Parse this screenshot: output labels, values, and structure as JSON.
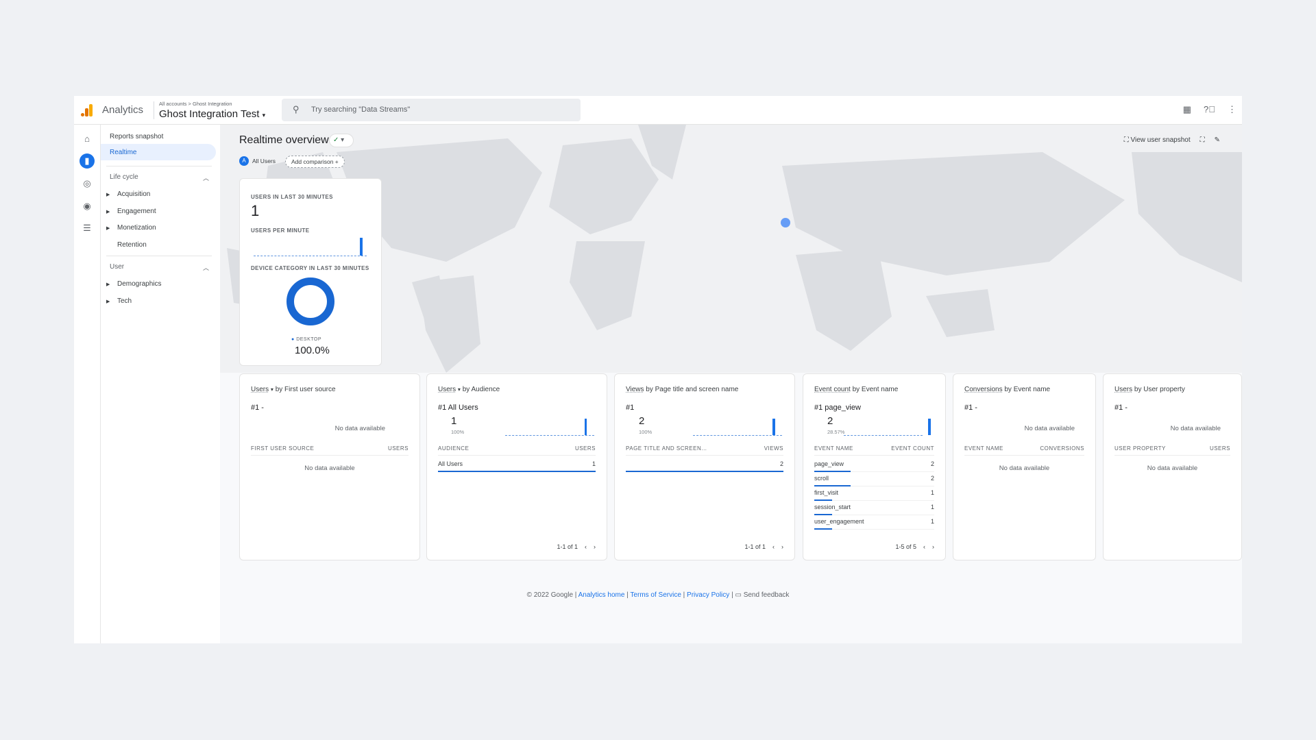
{
  "header": {
    "app_name": "Analytics",
    "breadcrumb": "All accounts > Ghost Integration",
    "property": "Ghost Integration Test",
    "search_placeholder": "Try searching \"Data Streams\""
  },
  "nav": {
    "reports_snapshot": "Reports snapshot",
    "realtime": "Realtime",
    "lifecycle": "Life cycle",
    "acquisition": "Acquisition",
    "engagement": "Engagement",
    "monetization": "Monetization",
    "retention": "Retention",
    "user": "User",
    "demographics": "Demographics",
    "tech": "Tech"
  },
  "page": {
    "title": "Realtime overview",
    "comparison_chip": "All Users",
    "comparison_letter": "A",
    "add_comparison": "Add comparison",
    "view_user_snapshot": "View user snapshot"
  },
  "overview_card": {
    "users_label": "USERS IN LAST 30 MINUTES",
    "users_value": "1",
    "per_minute_label": "USERS PER MINUTE",
    "device_label": "DEVICE CATEGORY IN LAST 30 MINUTES",
    "device_name": "DESKTOP",
    "device_pct": "100.0%"
  },
  "cards": [
    {
      "title_metric": "Users",
      "title_rest": "by First user source",
      "rank": "#1 -",
      "no_data": "No data available",
      "col1": "FIRST USER SOURCE",
      "col2": "USERS",
      "table_no_data": "No data available"
    },
    {
      "title_metric": "Users",
      "title_rest": "by Audience",
      "rank": "#1  All Users",
      "value": "1",
      "pct": "100%",
      "col1": "AUDIENCE",
      "col2": "USERS",
      "rows": [
        {
          "name": "All Users",
          "value": "1"
        }
      ],
      "pagination": "1-1 of 1"
    },
    {
      "title_metric": "Views",
      "title_rest": "by Page title and screen name",
      "rank": "#1",
      "value": "2",
      "pct": "100%",
      "col1": "PAGE TITLE AND SCREEN…",
      "col2": "VIEWS",
      "rows": [
        {
          "name": "",
          "value": "2"
        }
      ],
      "pagination": "1-1 of 1"
    },
    {
      "title_metric": "Event count",
      "title_rest": "by Event name",
      "rank": "#1  page_view",
      "value": "2",
      "pct": "28.57%",
      "col1": "EVENT NAME",
      "col2": "EVENT COUNT",
      "rows": [
        {
          "name": "page_view",
          "value": "2"
        },
        {
          "name": "scroll",
          "value": "2"
        },
        {
          "name": "first_visit",
          "value": "1"
        },
        {
          "name": "session_start",
          "value": "1"
        },
        {
          "name": "user_engagement",
          "value": "1"
        }
      ],
      "pagination": "1-5 of 5"
    },
    {
      "title_metric": "Conversions",
      "title_rest": "by Event name",
      "rank": "#1 -",
      "no_data": "No data available",
      "col1": "EVENT NAME",
      "col2": "CONVERSIONS",
      "table_no_data": "No data available"
    },
    {
      "title_metric": "Users",
      "title_rest": "by User property",
      "rank": "#1 -",
      "no_data": "No data available",
      "col1": "USER PROPERTY",
      "col2": "USERS",
      "table_no_data": "No data available"
    }
  ],
  "footer": {
    "copyright": "© 2022 Google",
    "analytics_home": "Analytics home",
    "terms": "Terms of Service",
    "privacy": "Privacy Policy",
    "feedback": "Send feedback"
  },
  "colors": {
    "accent": "#1a73e8",
    "bar": "#1967d2"
  }
}
